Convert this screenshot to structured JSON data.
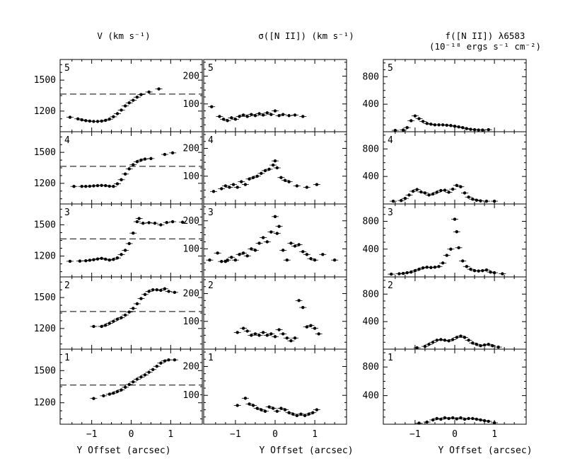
{
  "chart_data": {
    "type": "scatter",
    "layout": "grid of 5 rows x 3 columns, row 1 (panel 5) on top, row 5 (panel 1) at bottom",
    "shared_x": {
      "xlabel": "Y Offset (arcsec)",
      "xlim": [
        -1.8,
        1.8
      ],
      "ticks": [
        -1,
        0,
        1
      ],
      "tick_labels": [
        "−1",
        "0",
        "1"
      ]
    },
    "columns": [
      {
        "id": "velocity",
        "title": "V (km s⁻¹)",
        "ylim": [
          1000,
          1700
        ],
        "yticks": [
          1200,
          1500
        ],
        "ytick_labels": [
          "1200",
          "1500"
        ],
        "systemic_velocity": 1365
      },
      {
        "id": "dispersion",
        "title": "σ([N II]) (km s⁻¹)",
        "ylim": [
          0,
          260
        ],
        "yticks": [
          100,
          200
        ],
        "ytick_labels": [
          "100",
          "200"
        ]
      },
      {
        "id": "flux",
        "title": "f([N II]) λ6583",
        "title_line2": "(10⁻¹⁸ ergs s⁻¹ cm⁻²)",
        "ylim": [
          0,
          1050
        ],
        "yticks": [
          400,
          800
        ],
        "ytick_labels": [
          "400",
          "800"
        ]
      }
    ],
    "panel_labels": [
      "5",
      "4",
      "3",
      "2",
      "1"
    ],
    "series": {
      "velocity": [
        {
          "panel": "5",
          "x": [
            -1.55,
            -1.35,
            -1.25,
            -1.15,
            -1.05,
            -0.95,
            -0.85,
            -0.75,
            -0.65,
            -0.55,
            -0.45,
            -0.35,
            -0.25,
            -0.15,
            -0.05,
            0.05,
            0.15,
            0.25,
            0.45,
            0.7
          ],
          "y": [
            1140,
            1125,
            1115,
            1108,
            1103,
            1100,
            1100,
            1103,
            1110,
            1122,
            1145,
            1175,
            1210,
            1250,
            1280,
            1305,
            1335,
            1360,
            1385,
            1415
          ]
        },
        {
          "panel": "4",
          "x": [
            -1.45,
            -1.25,
            -1.15,
            -1.05,
            -0.95,
            -0.85,
            -0.75,
            -0.65,
            -0.55,
            -0.45,
            -0.35,
            -0.25,
            -0.15,
            -0.05,
            0.05,
            0.15,
            0.25,
            0.35,
            0.5,
            0.85,
            1.05
          ],
          "y": [
            1170,
            1170,
            1170,
            1172,
            1175,
            1178,
            1180,
            1178,
            1172,
            1170,
            1195,
            1235,
            1290,
            1340,
            1380,
            1410,
            1425,
            1435,
            1440,
            1480,
            1495
          ]
        },
        {
          "panel": "3",
          "x": [
            -1.55,
            -1.3,
            -1.15,
            -1.05,
            -0.95,
            -0.85,
            -0.75,
            -0.65,
            -0.55,
            -0.45,
            -0.35,
            -0.25,
            -0.15,
            -0.05,
            0.05,
            0.15,
            0.2,
            0.3,
            0.45,
            0.6,
            0.75,
            0.9,
            1.05,
            1.3
          ],
          "y": [
            1150,
            1152,
            1155,
            1160,
            1165,
            1172,
            1178,
            1170,
            1162,
            1168,
            1182,
            1215,
            1255,
            1320,
            1420,
            1530,
            1560,
            1515,
            1520,
            1515,
            1500,
            1522,
            1530,
            1525
          ]
        },
        {
          "panel": "2",
          "x": [
            -0.95,
            -0.75,
            -0.65,
            -0.55,
            -0.45,
            -0.35,
            -0.25,
            -0.15,
            -0.05,
            0.05,
            0.15,
            0.25,
            0.35,
            0.45,
            0.55,
            0.65,
            0.75,
            0.85,
            0.95,
            1.1
          ],
          "y": [
            1220,
            1220,
            1232,
            1250,
            1270,
            1290,
            1305,
            1330,
            1360,
            1395,
            1440,
            1490,
            1530,
            1560,
            1575,
            1575,
            1570,
            1585,
            1560,
            1550
          ]
        },
        {
          "panel": "1",
          "x": [
            -0.95,
            -0.7,
            -0.55,
            -0.45,
            -0.35,
            -0.25,
            -0.15,
            -0.05,
            0.05,
            0.15,
            0.25,
            0.35,
            0.45,
            0.55,
            0.65,
            0.75,
            0.85,
            0.95,
            1.1
          ],
          "y": [
            1240,
            1265,
            1280,
            1290,
            1305,
            1320,
            1345,
            1370,
            1395,
            1420,
            1440,
            1460,
            1485,
            1510,
            1540,
            1570,
            1590,
            1600,
            1600
          ]
        }
      ],
      "dispersion": [
        {
          "panel": "5",
          "x": [
            -1.6,
            -1.4,
            -1.3,
            -1.2,
            -1.1,
            -1.0,
            -0.9,
            -0.8,
            -0.7,
            -0.6,
            -0.5,
            -0.4,
            -0.3,
            -0.2,
            -0.1,
            0.0,
            0.1,
            0.2,
            0.35,
            0.5,
            0.7
          ],
          "y": [
            90,
            55,
            45,
            40,
            50,
            45,
            55,
            60,
            55,
            62,
            58,
            65,
            60,
            68,
            62,
            75,
            58,
            62,
            58,
            60,
            55
          ]
        },
        {
          "panel": "4",
          "x": [
            -1.55,
            -1.35,
            -1.25,
            -1.15,
            -1.05,
            -0.95,
            -0.85,
            -0.75,
            -0.65,
            -0.55,
            -0.45,
            -0.35,
            -0.25,
            -0.15,
            -0.05,
            0.0,
            0.05,
            0.15,
            0.25,
            0.35,
            0.55,
            0.8,
            1.05
          ],
          "y": [
            45,
            55,
            65,
            60,
            70,
            60,
            80,
            70,
            90,
            95,
            100,
            110,
            120,
            125,
            140,
            155,
            130,
            95,
            85,
            80,
            65,
            60,
            70
          ]
        },
        {
          "panel": "3",
          "x": [
            -1.65,
            -1.45,
            -1.35,
            -1.25,
            -1.2,
            -1.1,
            -1.0,
            -0.9,
            -0.8,
            -0.7,
            -0.6,
            -0.5,
            -0.4,
            -0.3,
            -0.2,
            -0.1,
            0.0,
            0.05,
            0.1,
            0.2,
            0.3,
            0.4,
            0.5,
            0.6,
            0.7,
            0.8,
            0.9,
            1.0,
            1.2,
            1.5
          ],
          "y": [
            60,
            85,
            55,
            55,
            60,
            70,
            60,
            80,
            85,
            75,
            100,
            95,
            120,
            140,
            125,
            160,
            215,
            155,
            180,
            95,
            60,
            120,
            110,
            115,
            90,
            80,
            65,
            60,
            80,
            60
          ]
        },
        {
          "panel": "2",
          "x": [
            -0.95,
            -0.8,
            -0.7,
            -0.6,
            -0.5,
            -0.4,
            -0.3,
            -0.2,
            -0.1,
            0.0,
            0.1,
            0.2,
            0.3,
            0.4,
            0.5,
            0.6,
            0.7,
            0.8,
            0.9,
            1.0,
            1.1
          ],
          "y": [
            60,
            75,
            65,
            50,
            55,
            50,
            60,
            50,
            55,
            45,
            70,
            55,
            40,
            30,
            40,
            175,
            150,
            80,
            85,
            75,
            55
          ]
        },
        {
          "panel": "1",
          "x": [
            -0.95,
            -0.75,
            -0.65,
            -0.55,
            -0.45,
            -0.35,
            -0.25,
            -0.15,
            -0.05,
            0.05,
            0.15,
            0.25,
            0.35,
            0.45,
            0.55,
            0.65,
            0.75,
            0.85,
            0.95,
            1.05
          ],
          "y": [
            65,
            90,
            70,
            65,
            55,
            50,
            45,
            60,
            55,
            45,
            55,
            50,
            40,
            35,
            30,
            35,
            30,
            35,
            40,
            50
          ]
        }
      ],
      "flux": [
        {
          "panel": "5",
          "x": [
            -1.5,
            -1.3,
            -1.2,
            -1.1,
            -1.0,
            -0.9,
            -0.8,
            -0.7,
            -0.6,
            -0.5,
            -0.4,
            -0.3,
            -0.2,
            -0.1,
            0.0,
            0.1,
            0.2,
            0.3,
            0.4,
            0.5,
            0.6,
            0.7,
            0.85
          ],
          "y": [
            20,
            25,
            60,
            160,
            230,
            190,
            150,
            120,
            110,
            100,
            100,
            100,
            95,
            90,
            80,
            70,
            60,
            45,
            35,
            30,
            25,
            25,
            30
          ]
        },
        {
          "panel": "4",
          "x": [
            -1.55,
            -1.35,
            -1.25,
            -1.15,
            -1.05,
            -0.95,
            -0.85,
            -0.75,
            -0.65,
            -0.55,
            -0.45,
            -0.35,
            -0.25,
            -0.15,
            -0.05,
            0.05,
            0.15,
            0.25,
            0.35,
            0.45,
            0.55,
            0.65,
            0.8,
            1.0
          ],
          "y": [
            40,
            50,
            80,
            130,
            185,
            210,
            175,
            160,
            130,
            145,
            170,
            195,
            200,
            170,
            215,
            270,
            250,
            160,
            100,
            70,
            55,
            45,
            40,
            40
          ]
        },
        {
          "panel": "3",
          "x": [
            -1.6,
            -1.4,
            -1.3,
            -1.2,
            -1.1,
            -1.0,
            -0.9,
            -0.8,
            -0.7,
            -0.6,
            -0.5,
            -0.4,
            -0.3,
            -0.2,
            -0.1,
            0.0,
            0.05,
            0.1,
            0.2,
            0.3,
            0.4,
            0.5,
            0.6,
            0.7,
            0.8,
            0.9,
            1.0,
            1.2
          ],
          "y": [
            40,
            45,
            50,
            60,
            70,
            90,
            110,
            130,
            140,
            135,
            140,
            150,
            200,
            310,
            400,
            830,
            650,
            420,
            230,
            150,
            110,
            90,
            85,
            90,
            100,
            70,
            60,
            45
          ]
        },
        {
          "panel": "2",
          "x": [
            -0.95,
            -0.75,
            -0.65,
            -0.55,
            -0.45,
            -0.35,
            -0.25,
            -0.15,
            -0.05,
            0.05,
            0.15,
            0.25,
            0.35,
            0.45,
            0.55,
            0.65,
            0.75,
            0.85,
            0.95,
            1.1
          ],
          "y": [
            20,
            40,
            70,
            100,
            130,
            140,
            130,
            120,
            140,
            170,
            190,
            170,
            130,
            90,
            70,
            50,
            60,
            70,
            50,
            30
          ]
        },
        {
          "panel": "1",
          "x": [
            -0.9,
            -0.7,
            -0.55,
            -0.45,
            -0.35,
            -0.25,
            -0.15,
            -0.05,
            0.05,
            0.15,
            0.25,
            0.35,
            0.45,
            0.55,
            0.65,
            0.75,
            0.85,
            1.0
          ],
          "y": [
            15,
            30,
            60,
            80,
            70,
            90,
            80,
            90,
            75,
            90,
            70,
            80,
            80,
            70,
            60,
            50,
            40,
            20
          ]
        }
      ]
    }
  }
}
